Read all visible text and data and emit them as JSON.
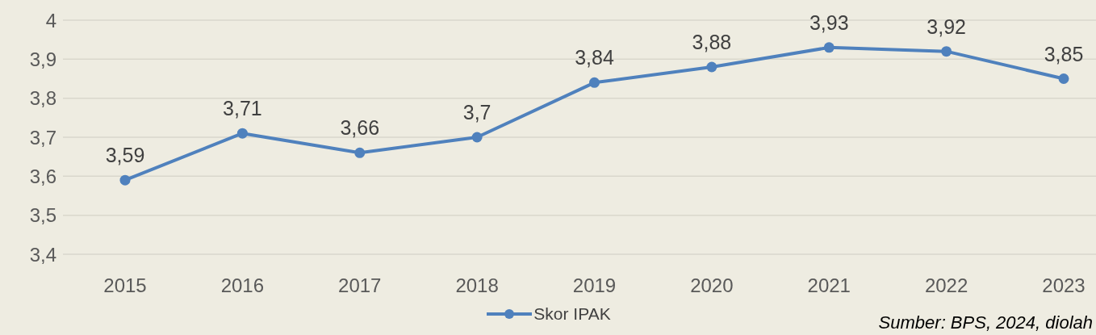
{
  "chart_data": {
    "type": "line",
    "categories": [
      "2015",
      "2016",
      "2017",
      "2018",
      "2019",
      "2020",
      "2021",
      "2022",
      "2023"
    ],
    "series": [
      {
        "name": "Skor IPAK",
        "color": "#4f81bd",
        "values": [
          3.59,
          3.71,
          3.66,
          3.7,
          3.84,
          3.88,
          3.93,
          3.92,
          3.85
        ],
        "value_labels": [
          "3,59",
          "3,71",
          "3,66",
          "3,7",
          "3,84",
          "3,88",
          "3,93",
          "3,92",
          "3,85"
        ]
      }
    ],
    "ylim": [
      3.4,
      4
    ],
    "yticks": [
      {
        "value": 3.4,
        "label": "3,4"
      },
      {
        "value": 3.5,
        "label": "3,5"
      },
      {
        "value": 3.6,
        "label": "3,6"
      },
      {
        "value": 3.7,
        "label": "3,7"
      },
      {
        "value": 3.8,
        "label": "3,8"
      },
      {
        "value": 3.9,
        "label": "3,9"
      },
      4
    ],
    "grid": "y",
    "legend": "bottom",
    "marker": "circle",
    "line_style": "solid",
    "annotations": [
      "Sumber: BPS, 2024, diolah"
    ]
  }
}
